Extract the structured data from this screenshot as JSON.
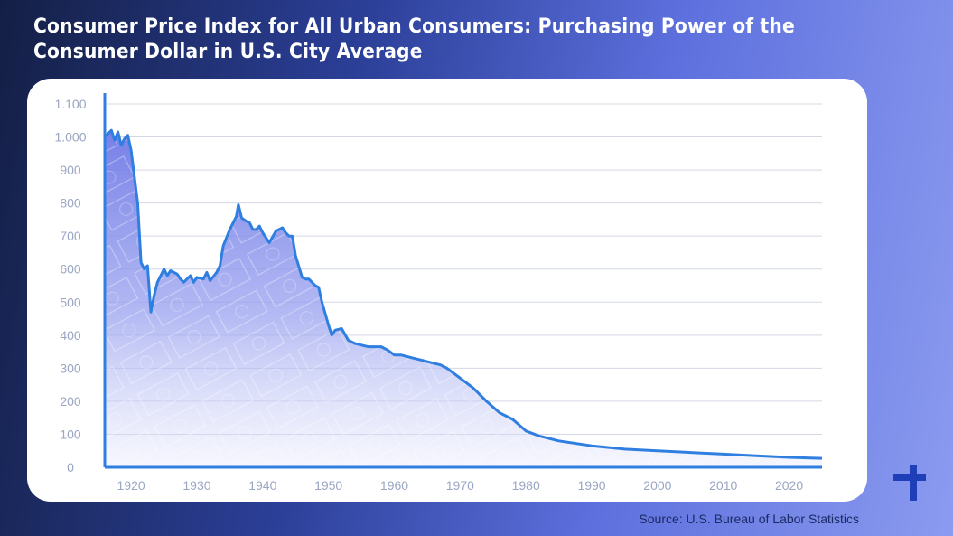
{
  "title": "Consumer Price Index for All Urban Consumers: Purchasing Power of the Consumer Dollar in U.S. City Average",
  "source": "Source: U.S. Bureau of Labor Statistics",
  "colors": {
    "line": "#2f7fe0",
    "fill": "#7a84e8",
    "grid": "#d4d8e6",
    "tick": "#9aa6c3",
    "card": "#ffffff"
  },
  "chart_data": {
    "type": "area",
    "title": "Consumer Price Index for All Urban Consumers: Purchasing Power of the Consumer Dollar in U.S. City Average",
    "xlabel": "",
    "ylabel": "",
    "xlim": [
      1916,
      2025
    ],
    "ylim": [
      0,
      1100
    ],
    "x_ticks": [
      1920,
      1930,
      1940,
      1950,
      1960,
      1970,
      1980,
      1990,
      2000,
      2010,
      2020
    ],
    "y_ticks": [
      0,
      100,
      200,
      300,
      400,
      500,
      600,
      700,
      800,
      900,
      1000,
      1100
    ],
    "y_tick_labels": [
      "0",
      "100",
      "200",
      "300",
      "400",
      "500",
      "600",
      "700",
      "800",
      "900",
      "1.000",
      "1.100"
    ],
    "grid": "horizontal",
    "legend": "none",
    "series": [
      {
        "x": [
          1916,
          1916.5,
          1917,
          1917.5,
          1918,
          1918.5,
          1919,
          1919.5,
          1920,
          1921,
          1921.5,
          1922,
          1922.5,
          1923,
          1923.5,
          1924,
          1925,
          1925.5,
          1926,
          1927,
          1927.5,
          1928,
          1929,
          1929.5,
          1930,
          1931,
          1931.5,
          1932,
          1933,
          1933.5,
          1934,
          1935,
          1936,
          1936.3,
          1936.8,
          1937.5,
          1938,
          1938.5,
          1939,
          1939.5,
          1940,
          1940.5,
          1941,
          1942,
          1942.5,
          1943,
          1943.5,
          1944,
          1944.5,
          1945,
          1946,
          1946.5,
          1947,
          1948,
          1948.5,
          1949,
          1950,
          1950.5,
          1951,
          1952,
          1953,
          1954,
          1955,
          1956,
          1957,
          1958,
          1959,
          1960,
          1961,
          1962,
          1963,
          1964,
          1965,
          1966,
          1967,
          1968,
          1970,
          1972,
          1974,
          1976,
          1978,
          1980,
          1982,
          1985,
          1990,
          1995,
          2000,
          2005,
          2010,
          2015,
          2020,
          2025
        ],
        "y": [
          1000,
          1010,
          1020,
          990,
          1015,
          975,
          995,
          1005,
          960,
          800,
          620,
          600,
          610,
          470,
          520,
          560,
          600,
          580,
          595,
          585,
          570,
          560,
          580,
          560,
          575,
          570,
          590,
          565,
          590,
          610,
          670,
          720,
          760,
          795,
          755,
          745,
          740,
          720,
          720,
          730,
          710,
          695,
          680,
          715,
          720,
          725,
          710,
          700,
          700,
          640,
          575,
          570,
          570,
          550,
          545,
          500,
          430,
          400,
          415,
          420,
          385,
          375,
          370,
          365,
          365,
          365,
          355,
          340,
          340,
          335,
          330,
          325,
          320,
          315,
          310,
          300,
          270,
          240,
          200,
          165,
          145,
          110,
          95,
          80,
          65,
          55,
          50,
          45,
          40,
          35,
          30,
          27
        ]
      }
    ]
  }
}
